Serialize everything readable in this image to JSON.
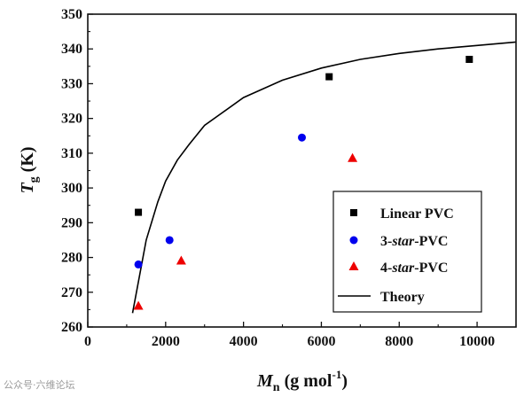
{
  "chart_data": {
    "type": "scatter",
    "xlabel": {
      "main": "M",
      "sub": "n",
      "unit_pre": " (g mol",
      "unit_sup": "-1",
      "unit_post": ")"
    },
    "ylabel": {
      "main": "T",
      "sub": "g",
      "unit": " (K)"
    },
    "xlim": [
      0,
      11000
    ],
    "ylim": [
      260,
      350
    ],
    "xticks": [
      0,
      2000,
      4000,
      6000,
      8000,
      10000
    ],
    "yticks": [
      260,
      270,
      280,
      290,
      300,
      310,
      320,
      330,
      340,
      350
    ],
    "grid": false,
    "legend_position": "bottom-right",
    "series": [
      {
        "name": "Linear PVC",
        "name_parts": [
          [
            "Linear PVC",
            "normal"
          ]
        ],
        "marker": "square",
        "color": "#000000",
        "x": [
          1300,
          6200,
          9800
        ],
        "y": [
          293,
          332,
          337
        ]
      },
      {
        "name": "3-star-PVC",
        "name_parts": [
          [
            "3-",
            "normal"
          ],
          [
            "star",
            "italic"
          ],
          [
            "-PVC",
            "normal"
          ]
        ],
        "marker": "circle",
        "color": "#0000ee",
        "x": [
          1300,
          2100,
          5500
        ],
        "y": [
          278,
          285,
          314.5
        ]
      },
      {
        "name": "4-star-PVC",
        "name_parts": [
          [
            "4-",
            "normal"
          ],
          [
            "star",
            "italic"
          ],
          [
            "-PVC",
            "normal"
          ]
        ],
        "marker": "triangle",
        "color": "#ee0000",
        "x": [
          1300,
          2400,
          6800
        ],
        "y": [
          266,
          279,
          308.5
        ]
      },
      {
        "name": "Theory",
        "name_parts": [
          [
            "Theory",
            "normal"
          ]
        ],
        "marker": "line",
        "color": "#000000",
        "x": [
          1150,
          1500,
          1800,
          2000,
          2300,
          2600,
          3000,
          4000,
          5000,
          6000,
          7000,
          8000,
          9000,
          10000,
          11000
        ],
        "y": [
          264,
          285,
          296,
          302,
          308,
          312.5,
          318,
          326,
          331,
          334.5,
          337,
          338.7,
          340,
          341,
          342
        ]
      }
    ]
  },
  "watermark": "公众号·六维论坛"
}
